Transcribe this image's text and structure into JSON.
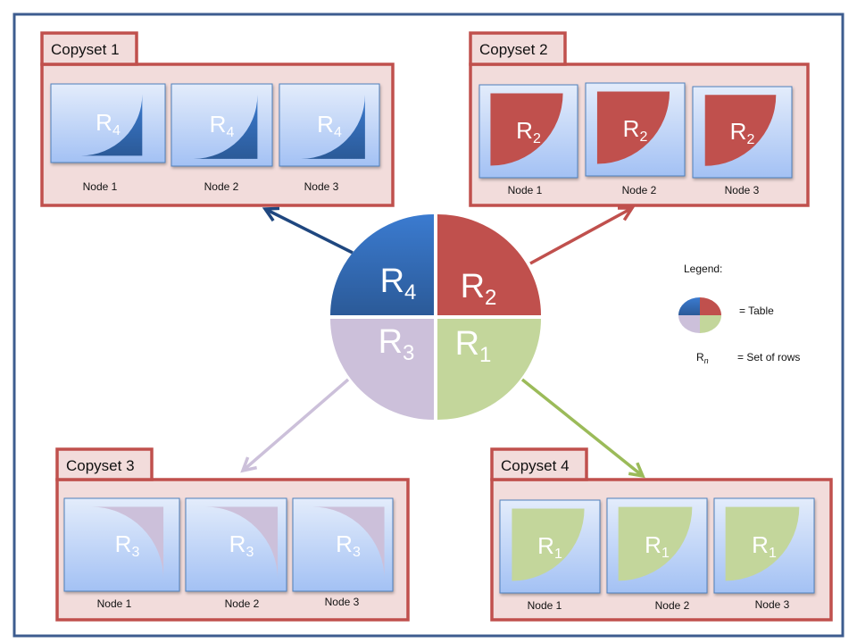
{
  "colors": {
    "frame": "#3d5c8f",
    "copyset_border": "#c0504d",
    "copyset_fill": "#f2dcdb",
    "node_border": "#4f81bd",
    "R4": "#3a6fb5",
    "R2": "#c0504d",
    "R3": "#ccc0da",
    "R1": "#c3d69b",
    "arrow_R4": "#1f477f",
    "arrow_R2": "#c0504d",
    "arrow_R3": "#ccc0da",
    "arrow_R1": "#9bbb59"
  },
  "table": {
    "segments": [
      {
        "base": "R",
        "sub": "4",
        "color_key": "R4"
      },
      {
        "base": "R",
        "sub": "2",
        "color_key": "R2"
      },
      {
        "base": "R",
        "sub": "3",
        "color_key": "R3"
      },
      {
        "base": "R",
        "sub": "1",
        "color_key": "R1"
      }
    ]
  },
  "copysets": [
    {
      "title": "Copyset 1",
      "rows": {
        "base": "R",
        "sub": "4"
      },
      "color_key": "R4",
      "nodes": [
        "Node 1",
        "Node 2",
        "Node 3"
      ]
    },
    {
      "title": "Copyset 2",
      "rows": {
        "base": "R",
        "sub": "2"
      },
      "color_key": "R2",
      "nodes": [
        "Node 1",
        "Node 2",
        "Node 3"
      ]
    },
    {
      "title": "Copyset 3",
      "rows": {
        "base": "R",
        "sub": "3"
      },
      "color_key": "R3",
      "nodes": [
        "Node 1",
        "Node 2",
        "Node 3"
      ]
    },
    {
      "title": "Copyset 4",
      "rows": {
        "base": "R",
        "sub": "1"
      },
      "color_key": "R1",
      "nodes": [
        "Node 1",
        "Node 2",
        "Node 3"
      ]
    }
  ],
  "legend": {
    "title": "Legend:",
    "table_label": "= Table",
    "rows_symbol_base": "R",
    "rows_symbol_sub": "n",
    "rows_label": "= Set of rows"
  }
}
